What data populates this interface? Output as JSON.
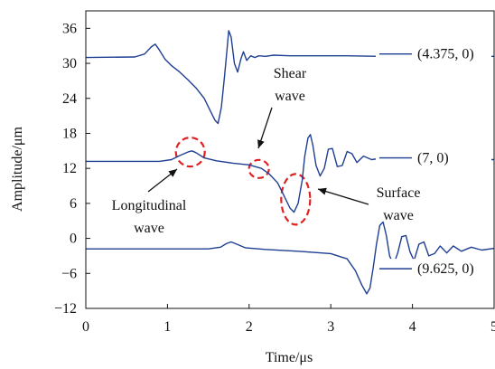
{
  "chart_data": {
    "type": "line",
    "xlabel": "Time/μs",
    "ylabel": "Amplitude/μm",
    "xlim": [
      0,
      5
    ],
    "ylim": [
      -12,
      39
    ],
    "xticks": [
      "0",
      "1",
      "2",
      "3",
      "4",
      "5"
    ],
    "yticks": [
      "−12",
      "−6",
      "0",
      "6",
      "12",
      "18",
      "24",
      "30",
      "36"
    ],
    "xtick_values": [
      0,
      1,
      2,
      3,
      4,
      5
    ],
    "ytick_values": [
      -12,
      -6,
      0,
      6,
      12,
      18,
      24,
      30,
      36
    ],
    "line_color": "#1f3f93",
    "annotation_color": "#e02020",
    "grid": false,
    "legend_placement": "right",
    "series": [
      {
        "name": "(4.375, 0)",
        "x": [
          0,
          0.6,
          0.72,
          0.8,
          0.85,
          0.9,
          0.97,
          1.05,
          1.15,
          1.25,
          1.35,
          1.45,
          1.52,
          1.58,
          1.62,
          1.66,
          1.7,
          1.73,
          1.75,
          1.78,
          1.82,
          1.86,
          1.9,
          1.93,
          1.97,
          2.02,
          2.07,
          2.12,
          2.2,
          2.3,
          2.5,
          2.8,
          3.2,
          3.6,
          4.0,
          4.5,
          5.0
        ],
        "y": [
          31,
          31.1,
          31.6,
          32.8,
          33.3,
          32.3,
          30.7,
          29.6,
          28.5,
          27.2,
          25.8,
          24.0,
          22.0,
          20.3,
          19.7,
          22.5,
          28.0,
          32.5,
          35.6,
          34.5,
          30.0,
          28.5,
          30.8,
          32.0,
          30.5,
          31.3,
          31.0,
          31.3,
          31.2,
          31.4,
          31.3,
          31.3,
          31.3,
          31.2,
          31.2,
          31.2,
          31.2
        ]
      },
      {
        "name": "(7, 0)",
        "x": [
          0,
          0.9,
          1.05,
          1.15,
          1.25,
          1.3,
          1.35,
          1.45,
          1.6,
          1.8,
          2.0,
          2.15,
          2.25,
          2.35,
          2.42,
          2.5,
          2.55,
          2.6,
          2.65,
          2.68,
          2.72,
          2.75,
          2.78,
          2.82,
          2.87,
          2.92,
          2.97,
          3.02,
          3.08,
          3.14,
          3.2,
          3.26,
          3.32,
          3.4,
          3.5,
          3.6,
          3.8,
          4.2,
          4.6,
          5.0
        ],
        "y": [
          13.2,
          13.2,
          13.5,
          14.2,
          14.8,
          15.0,
          14.7,
          13.8,
          13.3,
          12.9,
          12.6,
          12.0,
          11.0,
          9.5,
          7.5,
          5.2,
          4.5,
          6.0,
          10.0,
          14.0,
          17.2,
          17.8,
          16.0,
          12.5,
          10.7,
          12.0,
          15.3,
          15.4,
          12.3,
          12.5,
          14.9,
          14.5,
          13.0,
          14.1,
          13.5,
          13.7,
          13.5,
          13.5,
          13.5,
          13.5
        ]
      },
      {
        "name": "(9.625, 0)",
        "x": [
          0,
          1.5,
          1.65,
          1.72,
          1.78,
          1.85,
          1.95,
          2.2,
          2.6,
          3.0,
          3.2,
          3.3,
          3.38,
          3.44,
          3.48,
          3.52,
          3.56,
          3.6,
          3.64,
          3.68,
          3.72,
          3.77,
          3.82,
          3.87,
          3.92,
          3.97,
          4.02,
          4.08,
          4.14,
          4.2,
          4.27,
          4.34,
          4.42,
          4.5,
          4.6,
          4.72,
          4.85,
          5.0
        ],
        "y": [
          -1.8,
          -1.8,
          -1.5,
          -0.9,
          -0.6,
          -1.0,
          -1.6,
          -1.9,
          -2.2,
          -2.6,
          -3.5,
          -5.5,
          -8.0,
          -9.5,
          -8.5,
          -5.0,
          -1.0,
          2.2,
          2.8,
          0.5,
          -3.0,
          -4.5,
          -2.5,
          0.3,
          0.5,
          -2.3,
          -3.8,
          -1.0,
          -0.6,
          -3.0,
          -2.6,
          -1.3,
          -2.5,
          -1.3,
          -2.2,
          -1.5,
          -2.0,
          -1.7
        ]
      }
    ],
    "annotations": [
      {
        "text": "Longitudinal",
        "text2": "wave"
      },
      {
        "text": "Shear",
        "text2": "wave"
      },
      {
        "text": "Surface",
        "text2": "wave"
      }
    ]
  }
}
